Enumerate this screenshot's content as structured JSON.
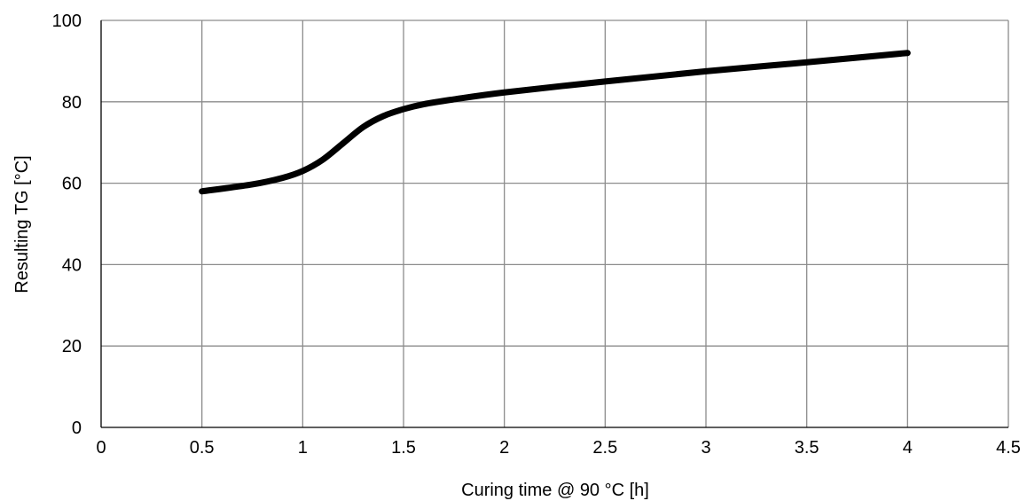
{
  "chart_data": {
    "type": "line",
    "title": "",
    "xlabel": "Curing time @ 90 °C [h]",
    "ylabel": "Resulting TG [°C]",
    "xlim": [
      0,
      4.5
    ],
    "ylim": [
      0,
      100
    ],
    "x_ticks": [
      "0",
      "0.5",
      "1",
      "1.5",
      "2",
      "2.5",
      "3",
      "3.5",
      "4",
      "4.5"
    ],
    "y_ticks": [
      "0",
      "20",
      "40",
      "60",
      "80",
      "100"
    ],
    "grid": true,
    "legend": "none",
    "colors": {
      "line": "#000000",
      "grid": "#8c8c8c",
      "axis": "#000000"
    },
    "series": [
      {
        "x": [
          0.5,
          0.75,
          0.9,
          1.0,
          1.1,
          1.2,
          1.3,
          1.4,
          1.5,
          1.6,
          1.75,
          2.0,
          2.5,
          3.0,
          3.5,
          4.0
        ],
        "y": [
          58,
          59.7,
          61.3,
          63,
          65.8,
          69.8,
          73.8,
          76.5,
          78.2,
          79.4,
          80.6,
          82.3,
          85,
          87.5,
          89.7,
          92
        ]
      }
    ]
  }
}
